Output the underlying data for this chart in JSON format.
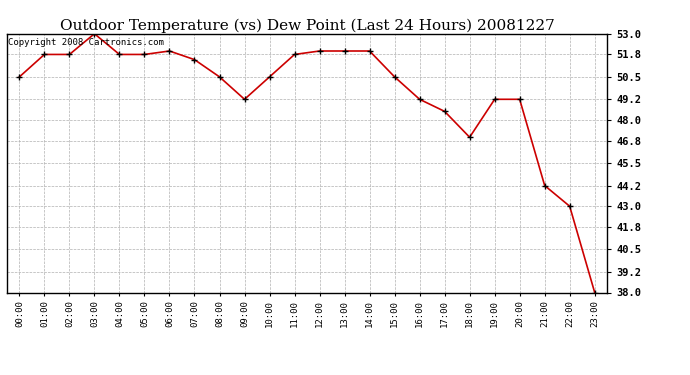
{
  "title": "Outdoor Temperature (vs) Dew Point (Last 24 Hours) 20081227",
  "copyright_text": "Copyright 2008 Cartronics.com",
  "x_labels": [
    "00:00",
    "01:00",
    "02:00",
    "03:00",
    "04:00",
    "05:00",
    "06:00",
    "07:00",
    "08:00",
    "09:00",
    "10:00",
    "11:00",
    "12:00",
    "13:00",
    "14:00",
    "15:00",
    "16:00",
    "17:00",
    "18:00",
    "19:00",
    "20:00",
    "21:00",
    "22:00",
    "23:00"
  ],
  "y_values": [
    50.5,
    51.8,
    51.8,
    53.0,
    51.8,
    51.8,
    52.0,
    51.5,
    50.5,
    49.2,
    50.5,
    51.8,
    52.0,
    52.0,
    52.0,
    50.5,
    49.2,
    48.5,
    47.0,
    49.2,
    49.2,
    44.2,
    43.0,
    38.0
  ],
  "y_min": 38.0,
  "y_max": 53.0,
  "y_ticks": [
    38.0,
    39.2,
    40.5,
    41.8,
    43.0,
    44.2,
    45.5,
    46.8,
    48.0,
    49.2,
    50.5,
    51.8,
    53.0
  ],
  "line_color": "#cc0000",
  "marker_color": "#000000",
  "bg_color": "#ffffff",
  "plot_bg_color": "#ffffff",
  "grid_color": "#b0b0b0",
  "title_fontsize": 11,
  "copyright_fontsize": 6.5
}
